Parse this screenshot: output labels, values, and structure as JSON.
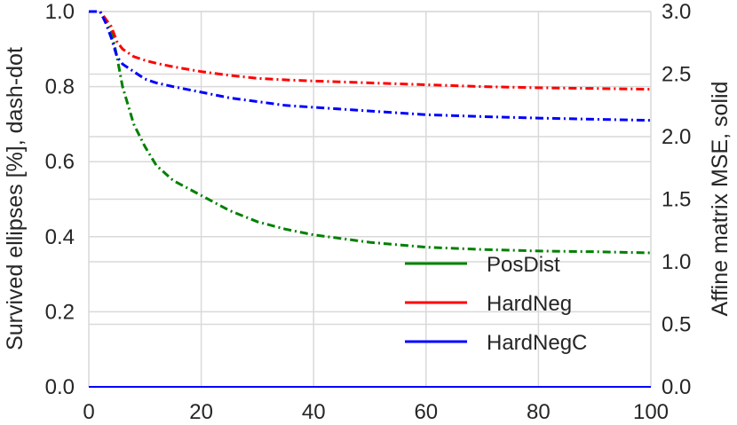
{
  "chart_data": {
    "type": "line",
    "title": "",
    "xlabel": "",
    "ylabel_left": "Survived ellipses [%], dash-dot",
    "ylabel_right": "Affine matrix MSE, solid",
    "xlim": [
      0,
      100
    ],
    "ylim_left": [
      0,
      1.0
    ],
    "ylim_right": [
      0,
      3.0
    ],
    "x_ticks": [
      "0",
      "20",
      "40",
      "60",
      "80",
      "100"
    ],
    "y_ticks_left": [
      "0.0",
      "0.2",
      "0.4",
      "0.6",
      "0.8",
      "1.0"
    ],
    "y_ticks_right": [
      "0.0",
      "0.5",
      "1.0",
      "1.5",
      "2.0",
      "2.5",
      "3.0"
    ],
    "grid": true,
    "legend_position": "lower-right",
    "x": [
      0,
      2,
      3,
      4,
      5,
      6,
      8,
      10,
      12,
      15,
      20,
      25,
      30,
      35,
      40,
      50,
      60,
      70,
      80,
      90,
      100
    ],
    "series": [
      {
        "name": "PosDist",
        "color": "#008000",
        "survived": [
          1.0,
          1.0,
          0.98,
          0.95,
          0.88,
          0.8,
          0.7,
          0.64,
          0.59,
          0.55,
          0.51,
          0.47,
          0.44,
          0.42,
          0.405,
          0.385,
          0.372,
          0.366,
          0.362,
          0.36,
          0.357
        ],
        "mse": [
          0,
          0,
          0,
          0,
          0,
          0,
          0,
          0,
          0,
          0,
          0,
          0,
          0,
          0,
          0,
          0,
          0,
          0,
          0,
          0,
          0
        ]
      },
      {
        "name": "HardNeg",
        "color": "#ff0000",
        "survived": [
          1.0,
          1.0,
          0.98,
          0.96,
          0.92,
          0.9,
          0.88,
          0.87,
          0.862,
          0.853,
          0.84,
          0.83,
          0.822,
          0.818,
          0.815,
          0.81,
          0.805,
          0.8,
          0.797,
          0.795,
          0.793
        ],
        "mse": [
          0,
          0,
          0,
          0,
          0,
          0,
          0,
          0,
          0,
          0,
          0,
          0,
          0,
          0,
          0,
          0,
          0,
          0,
          0,
          0,
          0
        ]
      },
      {
        "name": "HardNegC",
        "color": "#0000ff",
        "survived": [
          1.0,
          1.0,
          0.97,
          0.93,
          0.88,
          0.86,
          0.84,
          0.82,
          0.81,
          0.8,
          0.785,
          0.77,
          0.76,
          0.75,
          0.745,
          0.735,
          0.725,
          0.72,
          0.716,
          0.713,
          0.71
        ],
        "mse": [
          0,
          0,
          0,
          0,
          0,
          0,
          0,
          0,
          0,
          0,
          0,
          0,
          0,
          0,
          0,
          0,
          0,
          0,
          0,
          0,
          0
        ]
      }
    ]
  }
}
